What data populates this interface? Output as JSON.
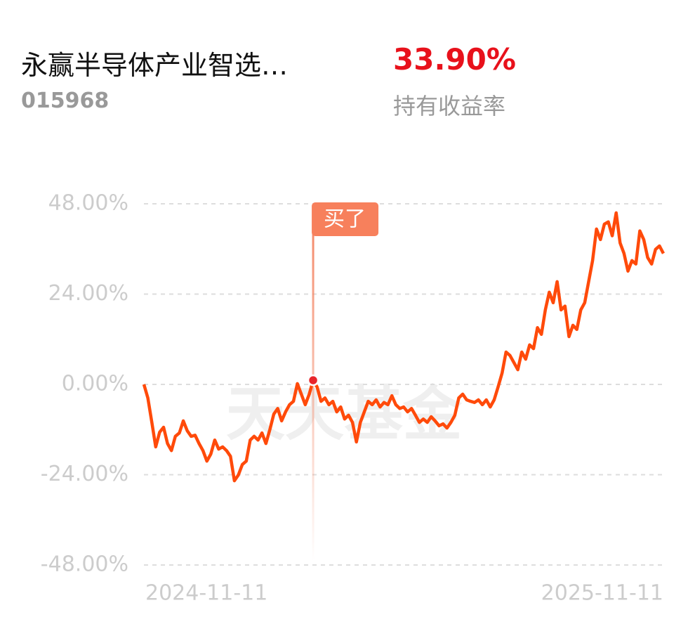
{
  "header": {
    "title": "永赢半导体产业智选…",
    "code": "015968",
    "return_value": "33.90%",
    "return_label": "持有收益率"
  },
  "watermark": "天天基金",
  "chart_data": {
    "type": "line",
    "categories": [
      "2024-11-11",
      null,
      null,
      null,
      null,
      null,
      null,
      null,
      null,
      null,
      null,
      null,
      null,
      null,
      null,
      null,
      null,
      null,
      null,
      null,
      null,
      null,
      null,
      null,
      null,
      null,
      null,
      null,
      null,
      null,
      null,
      null,
      null,
      null,
      null,
      null,
      null,
      null,
      null,
      null,
      null,
      null,
      null,
      null,
      null,
      null,
      null,
      null,
      null,
      null,
      null,
      null,
      null,
      null,
      null,
      null,
      null,
      null,
      null,
      null,
      null,
      null,
      null,
      null,
      null,
      null,
      null,
      null,
      null,
      null,
      null,
      null,
      null,
      null,
      null,
      null,
      null,
      null,
      null,
      null,
      null,
      null,
      null,
      null,
      null,
      null,
      null,
      null,
      null,
      null,
      null,
      null,
      null,
      null,
      null,
      null,
      null,
      null,
      null,
      null,
      null,
      null,
      null,
      null,
      null,
      null,
      null,
      null,
      null,
      null,
      null,
      null,
      null,
      null,
      null,
      null,
      null,
      null,
      null,
      null,
      null,
      null,
      null,
      null,
      null,
      null,
      null,
      null,
      null,
      null,
      null,
      null,
      "2025-11-11"
    ],
    "series": [
      {
        "color": "#ff4a0a",
        "values": [
          0,
          -3.6,
          -10,
          -16.6,
          -12.7,
          -11.4,
          -15.7,
          -17.6,
          -13.8,
          -12.9,
          -9.7,
          -12.3,
          -13.8,
          -13.5,
          -15.7,
          -17.6,
          -20.4,
          -18.5,
          -14.8,
          -17.2,
          -16.6,
          -17.6,
          -19.1,
          -25.6,
          -24.1,
          -21.3,
          -20.4,
          -14.8,
          -13.8,
          -14.8,
          -12.9,
          -15.7,
          -12,
          -7.9,
          -6.4,
          -9.7,
          -7.3,
          -5.4,
          -4.5,
          0.2,
          -2.6,
          -5.4,
          -2.6,
          1.1,
          -0.7,
          -4.5,
          -3.6,
          -5.4,
          -4.5,
          -7.3,
          -6,
          -9.2,
          -8.2,
          -10.1,
          -15.3,
          -10.1,
          -7.3,
          -4.5,
          -5.4,
          -4.1,
          -6,
          -4.8,
          -5.4,
          -3,
          -5.4,
          -6.4,
          -6,
          -7.3,
          -6.4,
          -8.2,
          -10.1,
          -9.2,
          -10.1,
          -8.6,
          -9.7,
          -11,
          -10.5,
          -11.6,
          -10.1,
          -8.2,
          -3.6,
          -2.6,
          -4.1,
          -4.5,
          -4.8,
          -4.1,
          -5.4,
          -4.1,
          -6,
          -4.1,
          -0.7,
          3,
          8.6,
          7.7,
          5.8,
          3.9,
          8.6,
          6.7,
          10.5,
          9.5,
          15.1,
          13.3,
          19.8,
          24.5,
          21.7,
          27.3,
          19.8,
          20.8,
          12.7,
          15.7,
          14.6,
          19.8,
          21.7,
          27.3,
          32.9,
          41.3,
          38.5,
          42.6,
          43.2,
          39.5,
          45.6,
          37.6,
          34.8,
          30.1,
          32.9,
          32,
          40.8,
          38.5,
          33.7,
          32,
          35.9,
          36.8,
          34.8
        ]
      }
    ],
    "ylim": [
      -48,
      48
    ],
    "yticks": [
      {
        "value": 48,
        "label": "48.00%"
      },
      {
        "value": 24,
        "label": "24.00%"
      },
      {
        "value": 0,
        "label": "0.00%"
      },
      {
        "value": -24,
        "label": "-24.00%"
      },
      {
        "value": -48,
        "label": "-48.00%"
      }
    ],
    "grid": true,
    "buy_marker": {
      "label": "买了",
      "index": 43,
      "color": "#e8262b"
    }
  }
}
